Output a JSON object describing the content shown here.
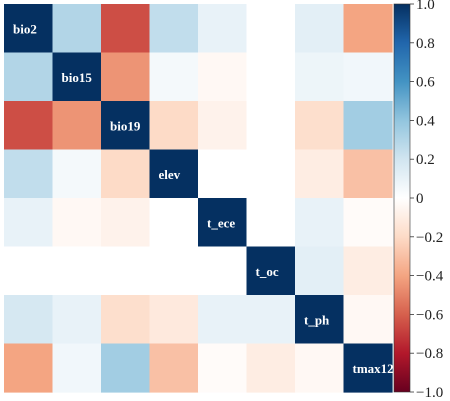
{
  "chart_data": {
    "type": "heatmap",
    "variables": [
      "bio2",
      "bio15",
      "bio19",
      "elev",
      "t_ece",
      "t_oc",
      "t_ph",
      "tmax12"
    ],
    "matrix": [
      [
        1.0,
        0.3,
        -0.65,
        0.25,
        0.1,
        0.0,
        0.12,
        -0.4
      ],
      [
        0.3,
        1.0,
        -0.45,
        0.05,
        -0.04,
        0.0,
        0.08,
        0.06
      ],
      [
        -0.65,
        -0.45,
        1.0,
        -0.2,
        -0.07,
        0.0,
        -0.18,
        0.35
      ],
      [
        0.25,
        0.05,
        -0.2,
        1.0,
        0.0,
        0.0,
        -0.1,
        -0.3
      ],
      [
        0.1,
        -0.04,
        -0.07,
        0.0,
        1.0,
        0.0,
        0.1,
        -0.02
      ],
      [
        0.0,
        0.0,
        0.0,
        0.0,
        0.0,
        1.0,
        0.12,
        -0.1
      ],
      [
        0.18,
        0.1,
        -0.18,
        -0.12,
        0.1,
        0.1,
        1.0,
        -0.04
      ],
      [
        -0.4,
        0.06,
        0.35,
        -0.3,
        -0.02,
        -0.1,
        -0.04,
        1.0
      ]
    ],
    "colorbar": {
      "min": -1.0,
      "max": 1.0,
      "ticks": [
        "1.0",
        "0.8",
        "0.6",
        "0.4",
        "0.2",
        "0",
        "−0.2",
        "−0.4",
        "−0.6",
        "−0.8",
        "−1.0"
      ],
      "tick_values": [
        1.0,
        0.8,
        0.6,
        0.4,
        0.2,
        0.0,
        -0.2,
        -0.4,
        -0.6,
        -0.8,
        -1.0
      ],
      "colormap": "RdBu",
      "stops": [
        "#67001f",
        "#b2182b",
        "#d6604d",
        "#f4a582",
        "#fddbc7",
        "#ffffff",
        "#d1e5f0",
        "#92c5de",
        "#4393c3",
        "#2166ac",
        "#053061"
      ]
    },
    "diagonal_label_color": "#ffffff",
    "title": "",
    "xlabel": "",
    "ylabel": ""
  }
}
